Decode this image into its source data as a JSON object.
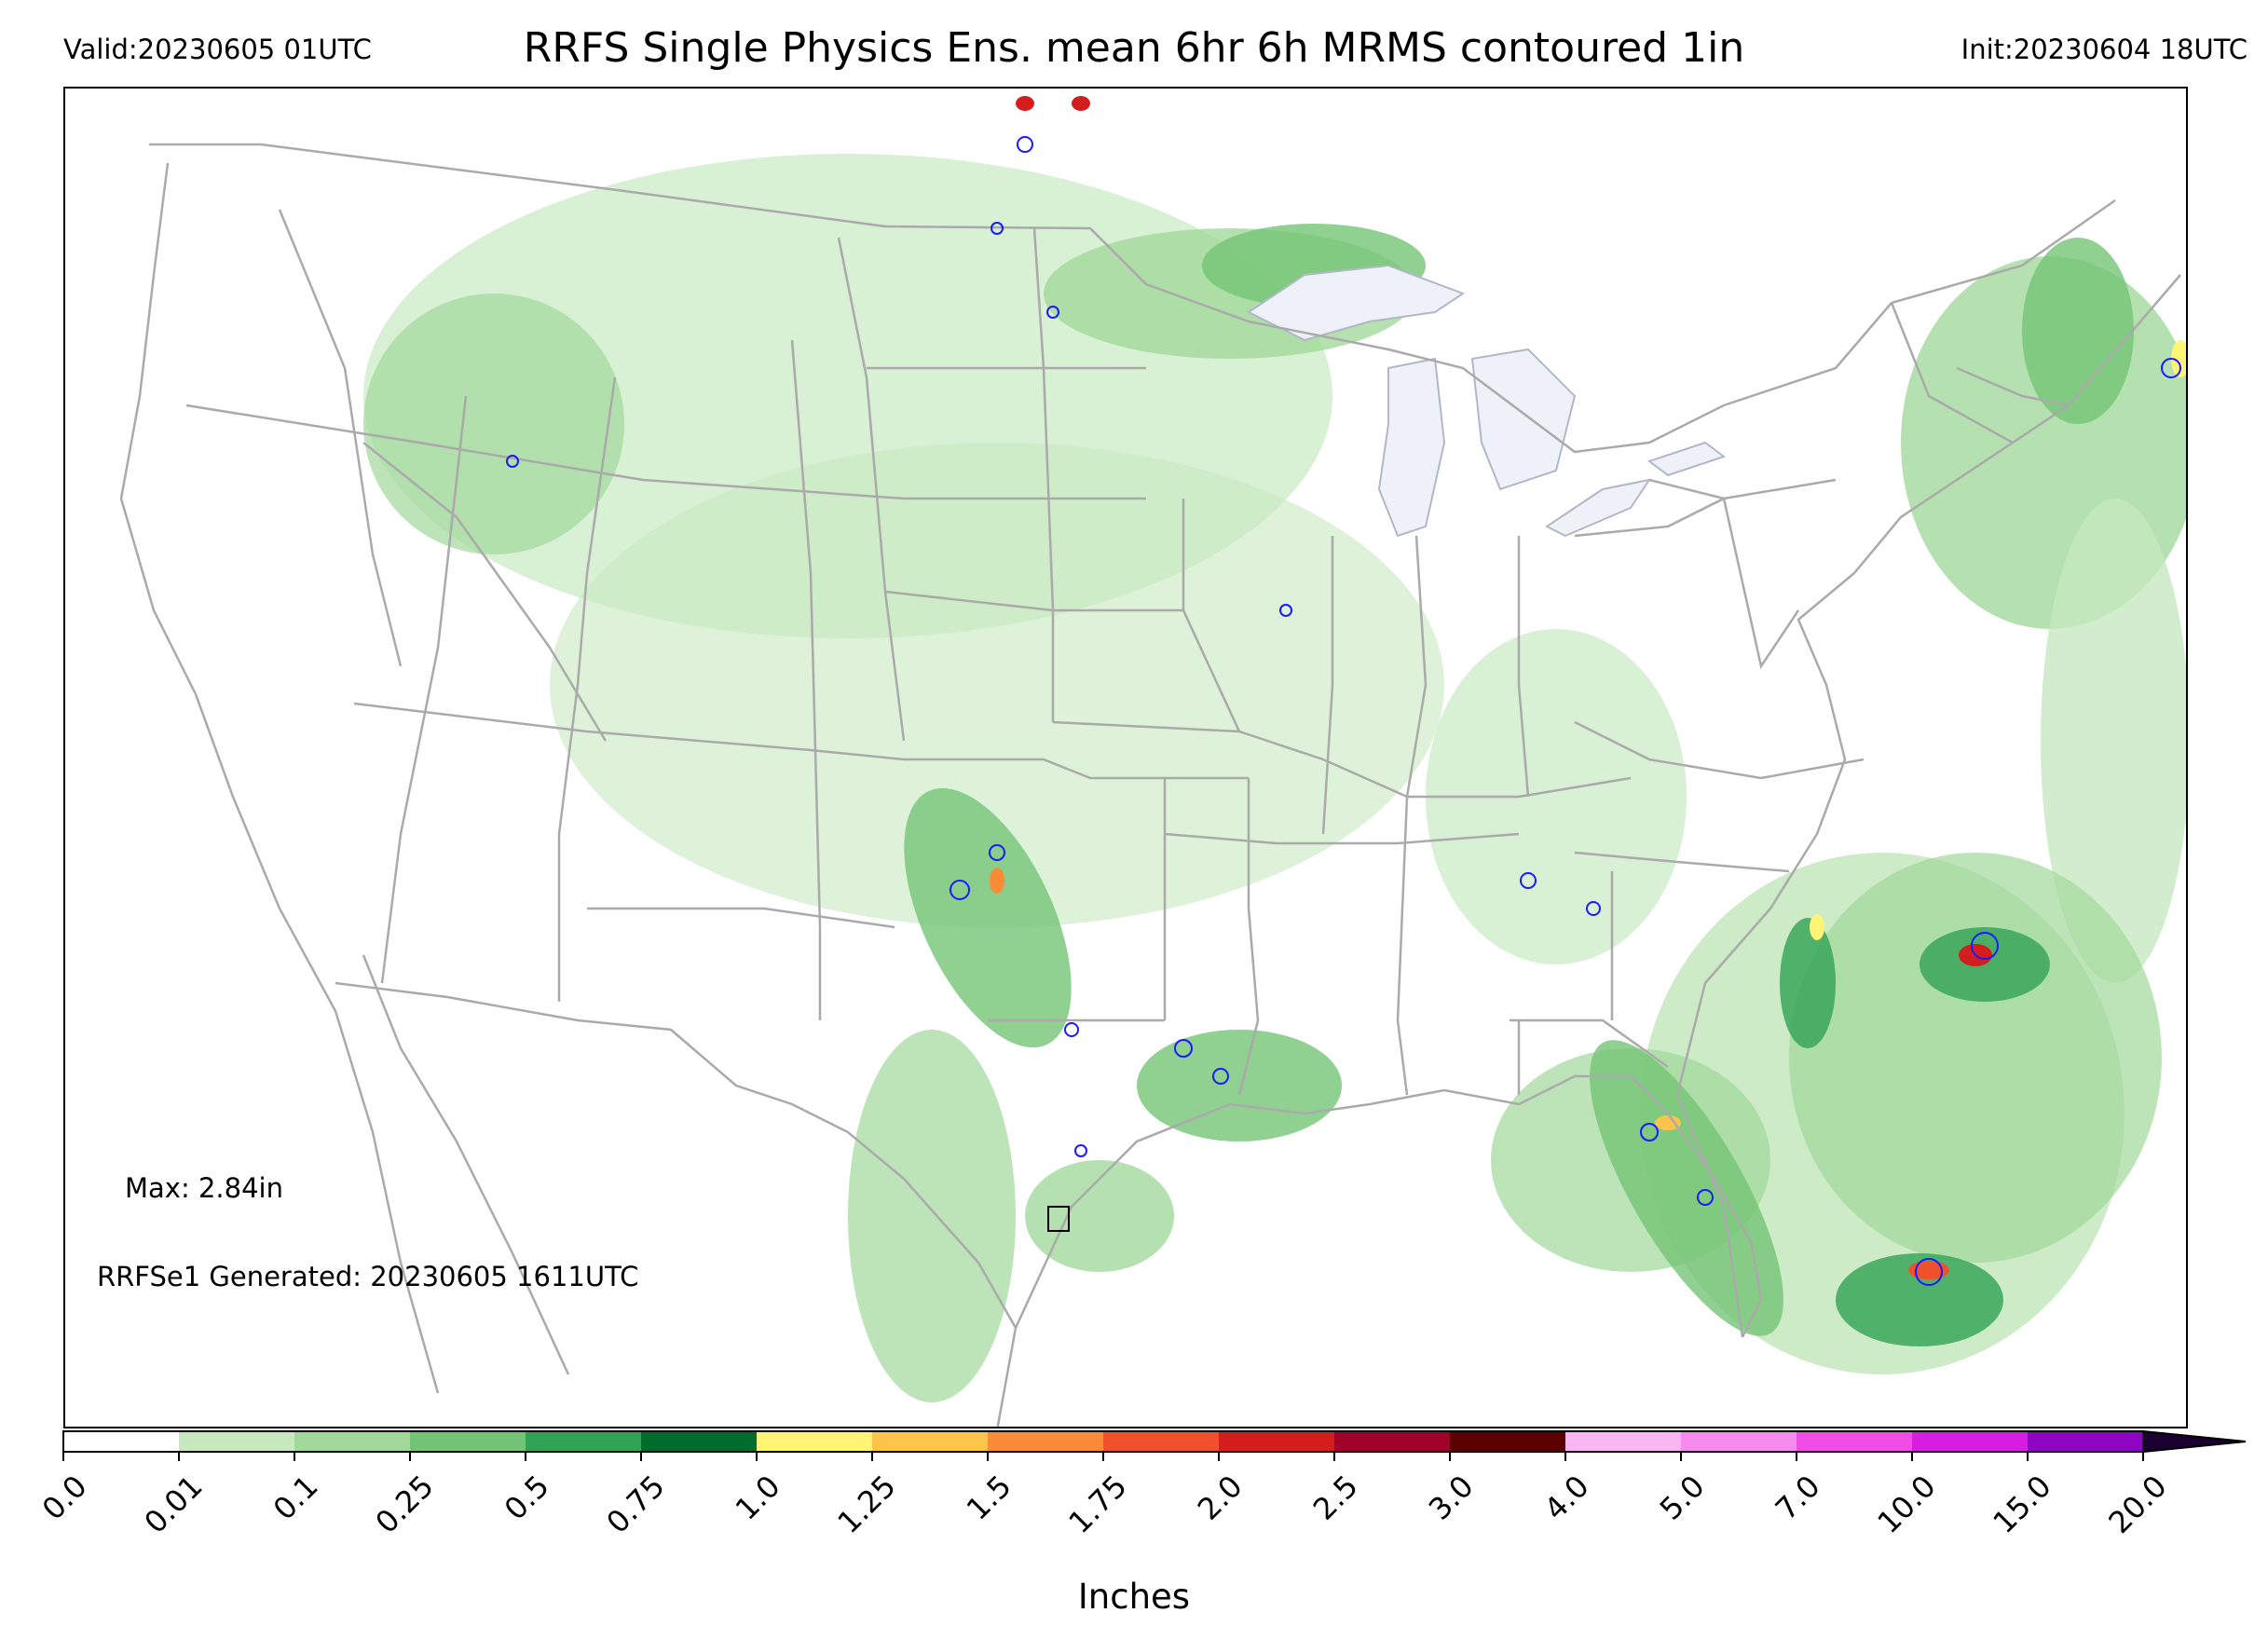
{
  "header": {
    "valid": "Valid:20230605 01UTC",
    "title": "RRFS Single Physics Ens. mean 6hr 6h MRMS contoured 1in",
    "init": "Init:20230604 18UTC"
  },
  "map": {
    "max_label": "Max: 2.84in",
    "generated_label": "RRFSe1 Generated: 20230605 1611UTC",
    "features": [
      "state-boundaries",
      "coastlines",
      "great-lakes",
      "precipitation-shading",
      "mrms-1in-contours"
    ],
    "colors": {
      "boundary": "#aaaaaa",
      "lakes": "#eef2f8",
      "contour": "#1a1aff"
    }
  },
  "colorbar": {
    "label": "Inches",
    "ticks": [
      "0.0",
      "0.01",
      "0.1",
      "0.25",
      "0.5",
      "0.75",
      "1.0",
      "1.25",
      "1.5",
      "1.75",
      "2.0",
      "2.5",
      "3.0",
      "4.0",
      "5.0",
      "7.0",
      "10.0",
      "15.0",
      "20.0"
    ],
    "colors": [
      "#ffffff",
      "#c7e9c0",
      "#a1d99b",
      "#74c476",
      "#31a354",
      "#006d2c",
      "#fff475",
      "#fcc44a",
      "#fb8b37",
      "#f0502b",
      "#d41d1d",
      "#a1002a",
      "#5a0000",
      "#f8b6f2",
      "#f58bef",
      "#f04ce6",
      "#d81ee0",
      "#8e06c4"
    ],
    "extend_color": "#1a0030"
  }
}
